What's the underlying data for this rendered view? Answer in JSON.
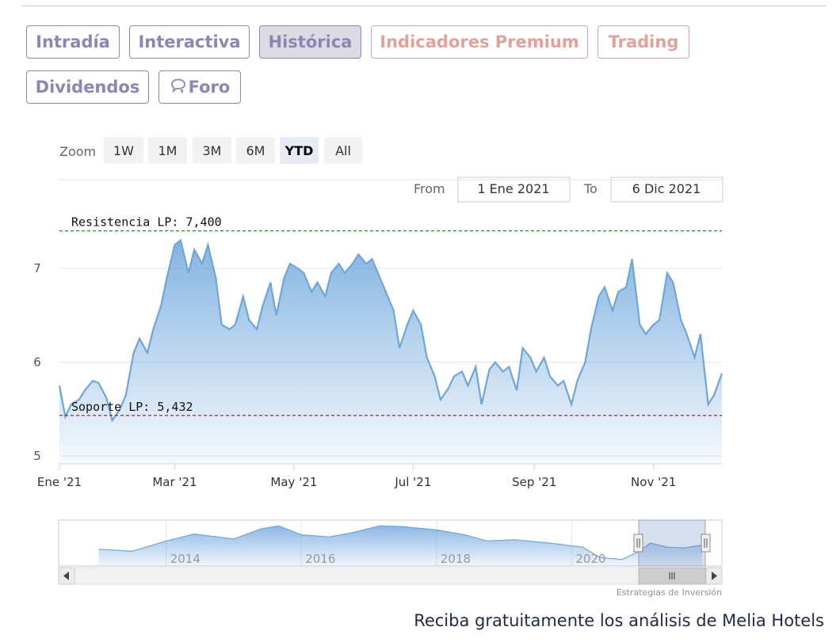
{
  "tabs": {
    "intradia": "Intradía",
    "interactiva": "Interactiva",
    "historica": "Histórica",
    "indicadores": "Indicadores Premium",
    "trading": "Trading",
    "dividendos": "Dividendos",
    "foro": "Foro"
  },
  "icons": {
    "foro": "speech-bubbles-icon",
    "scroll_left": "arrow-left-icon",
    "scroll_right": "arrow-right-icon",
    "scroll_grip": "grip-icon"
  },
  "colors": {
    "tab_text": "#8c86b2",
    "premium_text": "#e0a29b",
    "series": "#6ea6dc",
    "resistance": "#2d8a2d",
    "support": "#8b1a3a"
  },
  "range_selector": {
    "zoom_label": "Zoom",
    "buttons": [
      "1W",
      "1M",
      "3M",
      "6M",
      "YTD",
      "All"
    ],
    "selected": "YTD",
    "from_label": "From",
    "from_value": "1 Ene 2021",
    "to_label": "To",
    "to_value": "6 Dic 2021"
  },
  "chart_data": {
    "type": "area",
    "title": "",
    "xlabel": "",
    "ylabel": "",
    "x_tick_labels": [
      "Ene '21",
      "Mar '21",
      "May '21",
      "Jul '21",
      "Sep '21",
      "Nov '21"
    ],
    "y_tick_labels": [
      "5",
      "6",
      "7"
    ],
    "ylim": [
      5,
      7.55
    ],
    "xlim": [
      "2021-01-01",
      "2021-12-06"
    ],
    "grid": true,
    "annotations": [
      {
        "label": "Resistencia LP: 7,400",
        "value": 7.4
      },
      {
        "label": "Soporte LP: 5,432",
        "value": 5.432
      }
    ],
    "series": [
      {
        "values": [
          [
            "2021-01-01",
            5.75
          ],
          [
            "2021-01-04",
            5.42
          ],
          [
            "2021-01-07",
            5.55
          ],
          [
            "2021-01-11",
            5.6
          ],
          [
            "2021-01-14",
            5.7
          ],
          [
            "2021-01-18",
            5.8
          ],
          [
            "2021-01-21",
            5.78
          ],
          [
            "2021-01-25",
            5.62
          ],
          [
            "2021-01-28",
            5.38
          ],
          [
            "2021-02-01",
            5.5
          ],
          [
            "2021-02-04",
            5.65
          ],
          [
            "2021-02-08",
            6.1
          ],
          [
            "2021-02-11",
            6.25
          ],
          [
            "2021-02-15",
            6.1
          ],
          [
            "2021-02-18",
            6.35
          ],
          [
            "2021-02-22",
            6.6
          ],
          [
            "2021-02-25",
            6.9
          ],
          [
            "2021-03-01",
            7.25
          ],
          [
            "2021-03-04",
            7.3
          ],
          [
            "2021-03-08",
            6.95
          ],
          [
            "2021-03-11",
            7.2
          ],
          [
            "2021-03-15",
            7.05
          ],
          [
            "2021-03-18",
            7.25
          ],
          [
            "2021-03-22",
            6.9
          ],
          [
            "2021-03-25",
            6.4
          ],
          [
            "2021-03-29",
            6.35
          ],
          [
            "2021-04-01",
            6.4
          ],
          [
            "2021-04-05",
            6.7
          ],
          [
            "2021-04-08",
            6.45
          ],
          [
            "2021-04-12",
            6.35
          ],
          [
            "2021-04-15",
            6.6
          ],
          [
            "2021-04-19",
            6.85
          ],
          [
            "2021-04-22",
            6.5
          ],
          [
            "2021-04-26",
            6.9
          ],
          [
            "2021-04-29",
            7.05
          ],
          [
            "2021-05-03",
            7.0
          ],
          [
            "2021-05-06",
            6.95
          ],
          [
            "2021-05-10",
            6.75
          ],
          [
            "2021-05-13",
            6.85
          ],
          [
            "2021-05-17",
            6.7
          ],
          [
            "2021-05-20",
            6.95
          ],
          [
            "2021-05-24",
            7.05
          ],
          [
            "2021-05-27",
            6.95
          ],
          [
            "2021-05-31",
            7.05
          ],
          [
            "2021-06-03",
            7.15
          ],
          [
            "2021-06-07",
            7.05
          ],
          [
            "2021-06-10",
            7.1
          ],
          [
            "2021-06-14",
            6.9
          ],
          [
            "2021-06-17",
            6.75
          ],
          [
            "2021-06-21",
            6.55
          ],
          [
            "2021-06-24",
            6.15
          ],
          [
            "2021-06-28",
            6.4
          ],
          [
            "2021-07-01",
            6.55
          ],
          [
            "2021-07-05",
            6.4
          ],
          [
            "2021-07-08",
            6.05
          ],
          [
            "2021-07-12",
            5.85
          ],
          [
            "2021-07-15",
            5.6
          ],
          [
            "2021-07-19",
            5.72
          ],
          [
            "2021-07-22",
            5.85
          ],
          [
            "2021-07-26",
            5.9
          ],
          [
            "2021-07-29",
            5.75
          ],
          [
            "2021-08-02",
            5.95
          ],
          [
            "2021-08-05",
            5.55
          ],
          [
            "2021-08-09",
            5.92
          ],
          [
            "2021-08-12",
            6.0
          ],
          [
            "2021-08-16",
            5.9
          ],
          [
            "2021-08-19",
            5.95
          ],
          [
            "2021-08-23",
            5.7
          ],
          [
            "2021-08-26",
            6.15
          ],
          [
            "2021-08-30",
            6.05
          ],
          [
            "2021-09-02",
            5.9
          ],
          [
            "2021-09-06",
            6.05
          ],
          [
            "2021-09-09",
            5.85
          ],
          [
            "2021-09-13",
            5.75
          ],
          [
            "2021-09-16",
            5.8
          ],
          [
            "2021-09-20",
            5.55
          ],
          [
            "2021-09-23",
            5.8
          ],
          [
            "2021-09-27",
            6.0
          ],
          [
            "2021-09-30",
            6.35
          ],
          [
            "2021-10-04",
            6.7
          ],
          [
            "2021-10-07",
            6.8
          ],
          [
            "2021-10-11",
            6.55
          ],
          [
            "2021-10-14",
            6.75
          ],
          [
            "2021-10-18",
            6.8
          ],
          [
            "2021-10-21",
            7.1
          ],
          [
            "2021-10-25",
            6.4
          ],
          [
            "2021-10-28",
            6.3
          ],
          [
            "2021-11-01",
            6.4
          ],
          [
            "2021-11-04",
            6.45
          ],
          [
            "2021-11-08",
            6.95
          ],
          [
            "2021-11-11",
            6.85
          ],
          [
            "2021-11-15",
            6.45
          ],
          [
            "2021-11-18",
            6.3
          ],
          [
            "2021-11-22",
            6.05
          ],
          [
            "2021-11-25",
            6.3
          ],
          [
            "2021-11-29",
            5.55
          ],
          [
            "2021-12-02",
            5.65
          ],
          [
            "2021-12-06",
            5.88
          ]
        ]
      }
    ],
    "navigator": {
      "x_tick_labels": [
        "2014",
        "2016",
        "2018",
        "2020"
      ],
      "selection": [
        "2021-01-01",
        "2021-12-06"
      ],
      "values": [
        [
          "2013-01-01",
          0.35
        ],
        [
          "2013-07-01",
          0.3
        ],
        [
          "2014-01-01",
          0.55
        ],
        [
          "2014-06-01",
          0.72
        ],
        [
          "2015-01-01",
          0.6
        ],
        [
          "2015-06-01",
          0.85
        ],
        [
          "2015-09-01",
          0.92
        ],
        [
          "2016-01-01",
          0.7
        ],
        [
          "2016-06-01",
          0.65
        ],
        [
          "2016-10-01",
          0.75
        ],
        [
          "2017-03-01",
          0.92
        ],
        [
          "2017-07-01",
          0.9
        ],
        [
          "2018-01-01",
          0.82
        ],
        [
          "2018-06-01",
          0.7
        ],
        [
          "2018-10-01",
          0.55
        ],
        [
          "2019-03-01",
          0.58
        ],
        [
          "2019-09-01",
          0.5
        ],
        [
          "2020-03-01",
          0.4
        ],
        [
          "2020-06-01",
          0.15
        ],
        [
          "2020-10-01",
          0.1
        ],
        [
          "2021-01-01",
          0.3
        ],
        [
          "2021-03-01",
          0.5
        ],
        [
          "2021-06-01",
          0.4
        ],
        [
          "2021-09-01",
          0.38
        ],
        [
          "2021-12-06",
          0.45
        ]
      ]
    },
    "credit": "Estrategias de Inversión"
  },
  "cta": "Reciba gratuitamente los análisis de Melia Hotels"
}
